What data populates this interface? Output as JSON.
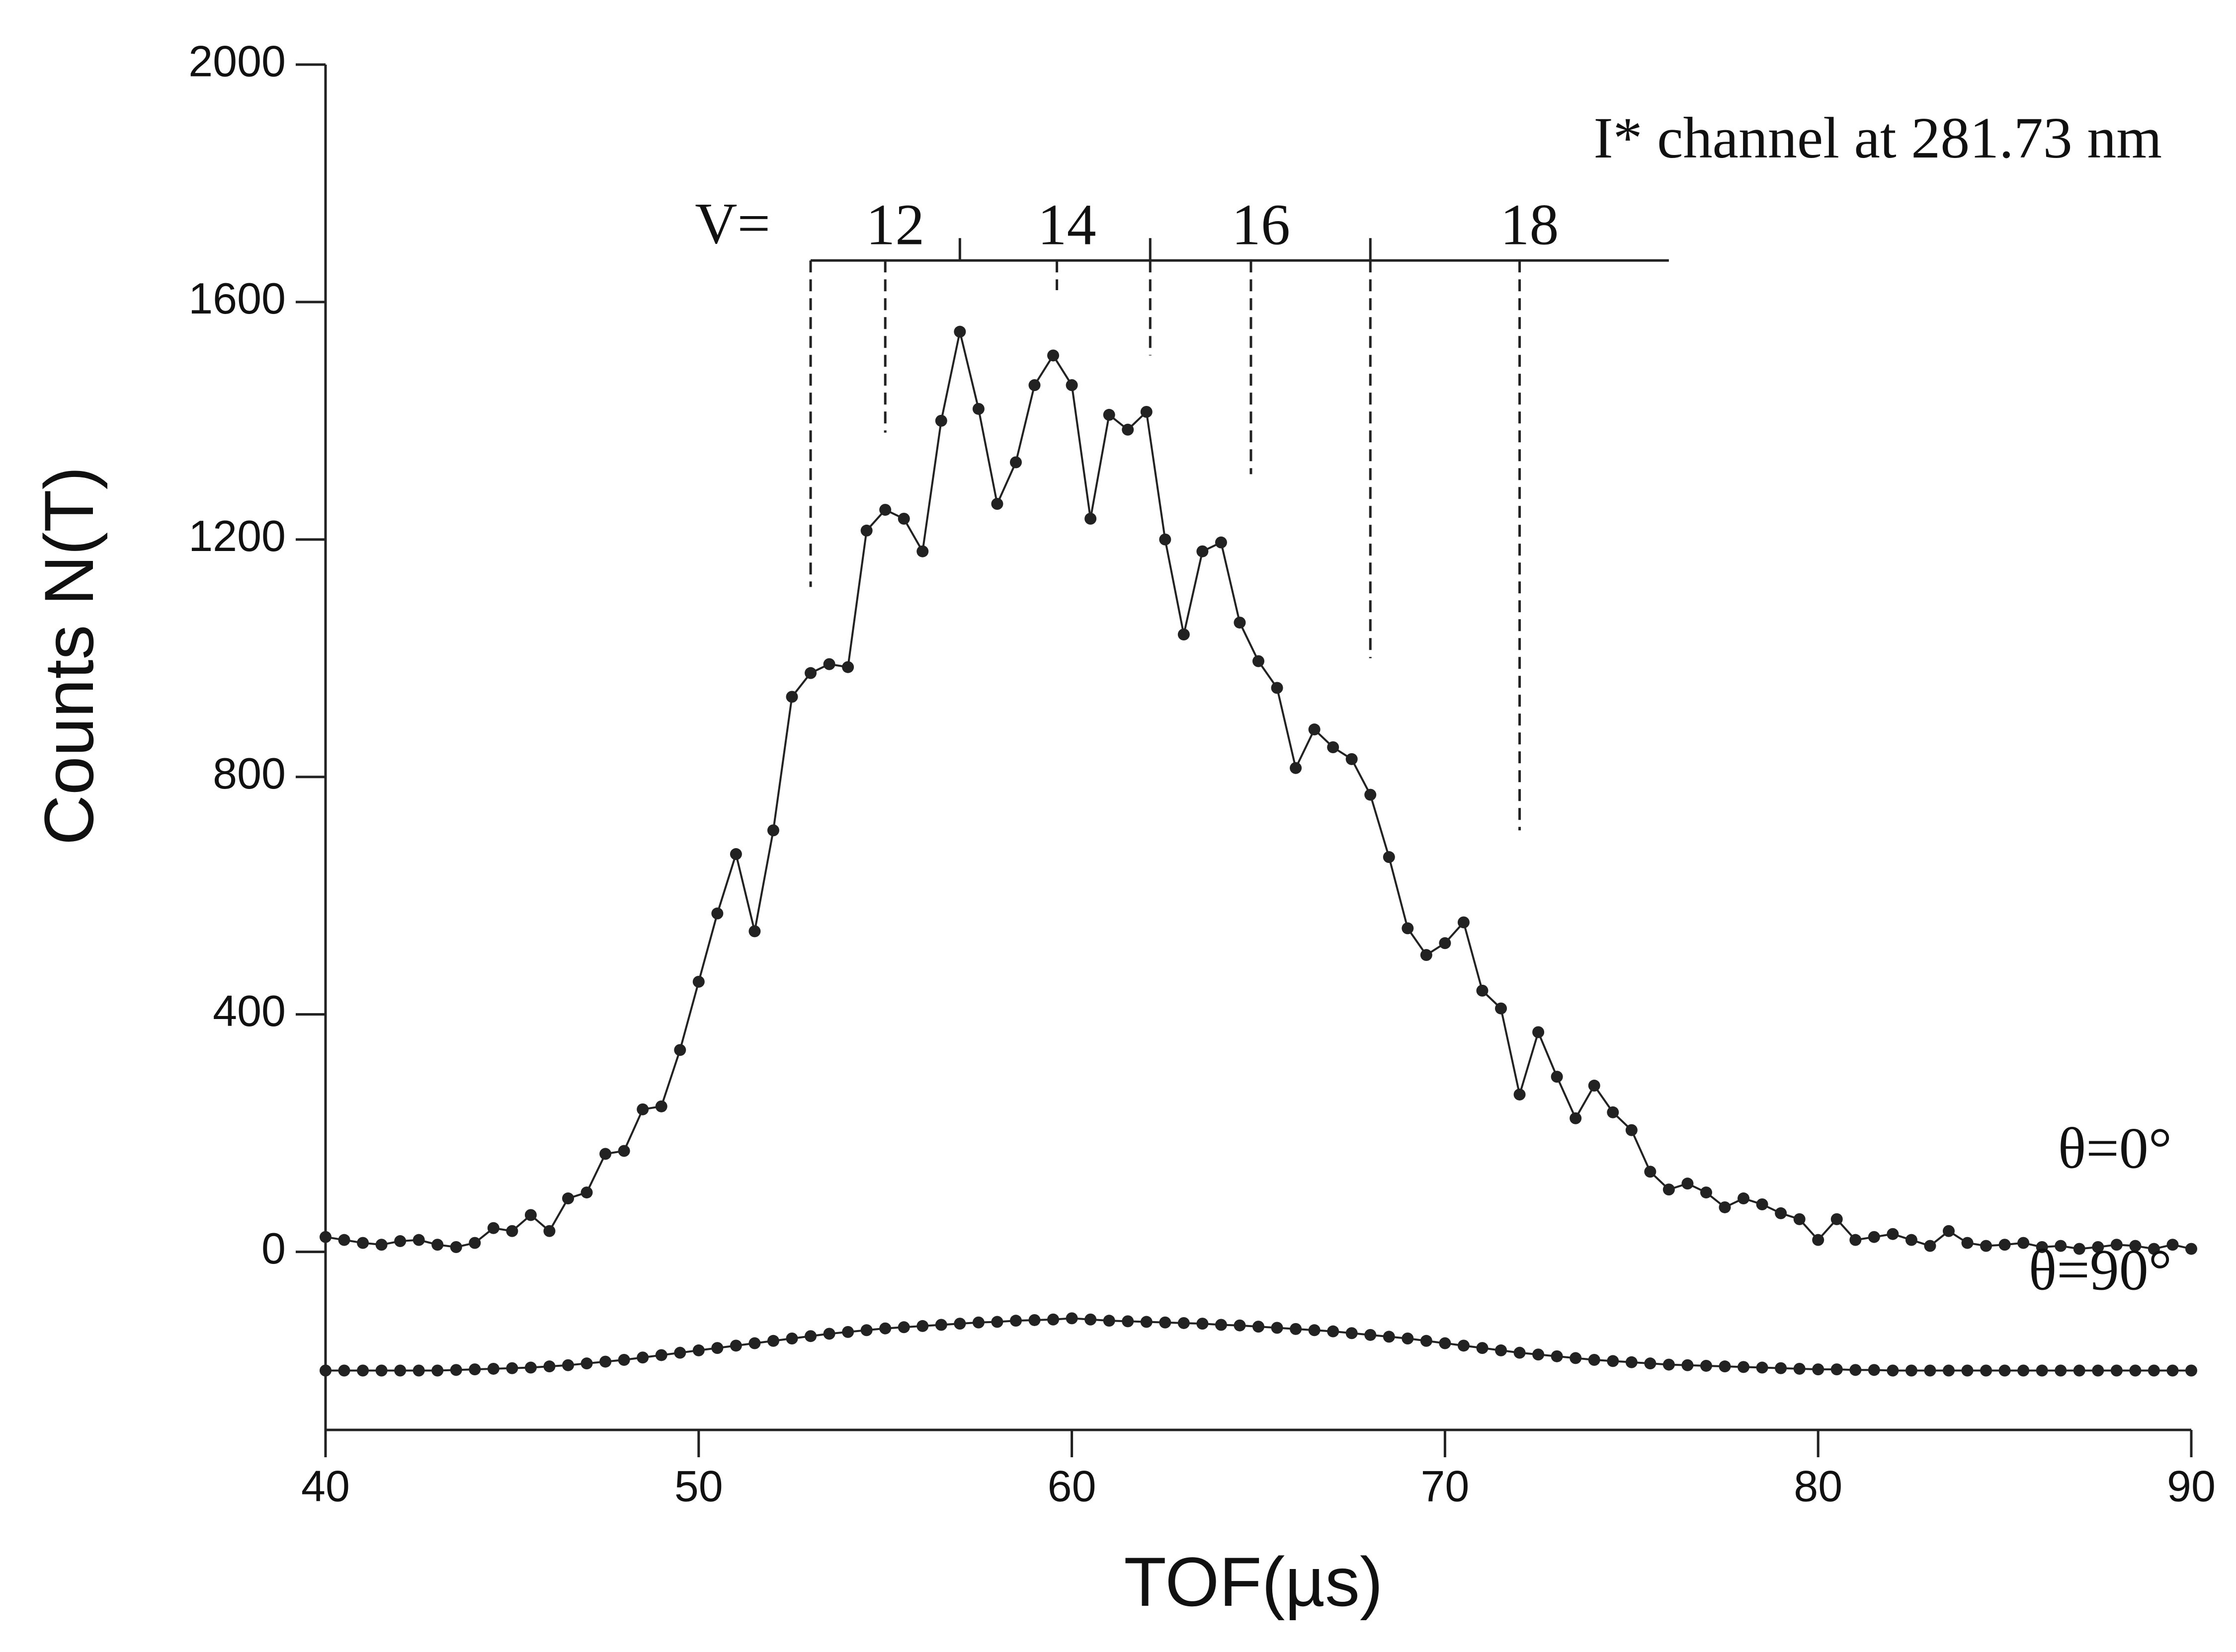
{
  "chart_data": {
    "type": "line",
    "annotation": "I* channel at 281.73 nm",
    "x_label": "TOF(µs)",
    "y_label": "Counts  N(T)",
    "x": [
      40,
      40.5,
      41,
      41.5,
      42,
      42.5,
      43,
      43.5,
      44,
      44.5,
      45,
      45.5,
      46,
      46.5,
      47,
      47.5,
      48,
      48.5,
      49,
      49.5,
      50,
      50.5,
      51,
      51.5,
      52,
      52.5,
      53,
      53.5,
      54,
      54.5,
      55,
      55.5,
      56,
      56.5,
      57,
      57.5,
      58,
      58.5,
      59,
      59.5,
      60,
      60.5,
      61,
      61.5,
      62,
      62.5,
      63,
      63.5,
      64,
      64.5,
      65,
      65.5,
      66,
      66.5,
      67,
      67.5,
      68,
      68.5,
      69,
      69.5,
      70,
      70.5,
      71,
      71.5,
      72,
      72.5,
      73,
      73.5,
      74,
      74.5,
      75,
      75.5,
      76,
      76.5,
      77,
      77.5,
      78,
      78.5,
      79,
      79.5,
      80,
      80.5,
      81,
      81.5,
      82,
      82.5,
      83,
      83.5,
      84,
      84.5,
      85,
      85.5,
      86,
      86.5,
      87,
      87.5,
      88,
      88.5,
      89,
      89.5,
      90
    ],
    "series": [
      {
        "name": "θ=0°",
        "color": "#222222",
        "values": [
          25,
          20,
          15,
          12,
          18,
          20,
          12,
          8,
          15,
          40,
          35,
          62,
          35,
          90,
          100,
          165,
          170,
          240,
          245,
          340,
          455,
          570,
          670,
          540,
          710,
          935,
          975,
          990,
          985,
          1215,
          1250,
          1235,
          1180,
          1400,
          1550,
          1420,
          1260,
          1330,
          1460,
          1510,
          1460,
          1235,
          1410,
          1385,
          1415,
          1200,
          1040,
          1180,
          1195,
          1060,
          995,
          950,
          815,
          880,
          850,
          830,
          770,
          665,
          545,
          500,
          520,
          555,
          440,
          410,
          265,
          370,
          295,
          225,
          280,
          235,
          205,
          135,
          105,
          115,
          100,
          75,
          90,
          80,
          65,
          55,
          20,
          55,
          20,
          25,
          30,
          20,
          10,
          35,
          15,
          10,
          12,
          15,
          8,
          10,
          5,
          8,
          12,
          10,
          5,
          12,
          5
        ]
      },
      {
        "name": "θ=90°",
        "color": "#222222",
        "values": [
          -200,
          -200,
          -200,
          -200,
          -200,
          -200,
          -200,
          -199,
          -198,
          -197,
          -196,
          -195,
          -193,
          -191,
          -188,
          -185,
          -182,
          -178,
          -174,
          -170,
          -166,
          -162,
          -158,
          -154,
          -150,
          -146,
          -142,
          -138,
          -135,
          -132,
          -129,
          -127,
          -125,
          -123,
          -121,
          -119,
          -118,
          -116,
          -115,
          -114,
          -112,
          -114,
          -116,
          -117,
          -118,
          -119,
          -120,
          -121,
          -123,
          -124,
          -126,
          -128,
          -130,
          -132,
          -134,
          -137,
          -140,
          -143,
          -146,
          -150,
          -154,
          -158,
          -162,
          -166,
          -170,
          -173,
          -176,
          -179,
          -182,
          -184,
          -186,
          -188,
          -190,
          -191,
          -192,
          -193,
          -194,
          -195,
          -196,
          -197,
          -198,
          -198,
          -199,
          -199,
          -200,
          -200,
          -200,
          -200,
          -200,
          -200,
          -200,
          -200,
          -200,
          -200,
          -200,
          -200,
          -200,
          -200,
          -200,
          -200,
          -200
        ]
      }
    ],
    "xlim": [
      40,
      90
    ],
    "xticks": [
      40,
      50,
      60,
      70,
      80,
      90
    ],
    "ylim": [
      -300,
      2000
    ],
    "yticks": [
      0,
      400,
      800,
      1200,
      1600,
      2000
    ],
    "v_scale": {
      "label": "V=",
      "y": 1670,
      "xlim": [
        53,
        76
      ],
      "levels": [
        {
          "x": 53,
          "y": 1120
        },
        {
          "label": "12",
          "x": 55,
          "y": 1380
        },
        {
          "x": 57,
          "y": 1670
        },
        {
          "label": "14",
          "x": 59.6,
          "y": 1620
        },
        {
          "x": 62.1,
          "y": 1510
        },
        {
          "label": "16",
          "x": 64.8,
          "y": 1310
        },
        {
          "x": 68,
          "y": 1000
        },
        {
          "label": "18",
          "x": 72,
          "y": 710
        }
      ]
    }
  }
}
